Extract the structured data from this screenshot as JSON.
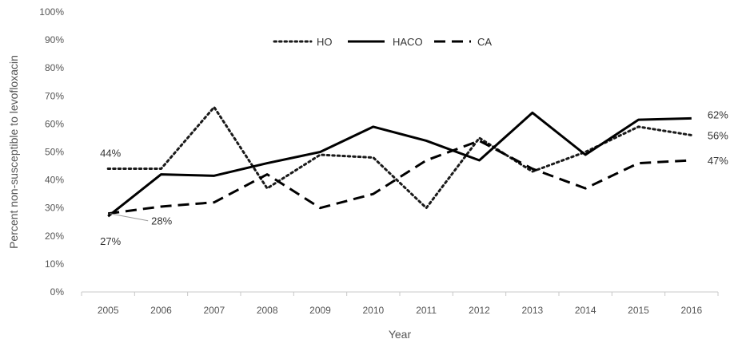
{
  "chart_data": {
    "type": "line",
    "title": "",
    "xlabel": "Year",
    "ylabel": "Percent non-susceptible to levofloxacin",
    "categories": [
      "2005",
      "2006",
      "2007",
      "2008",
      "2009",
      "2010",
      "2011",
      "2012",
      "2013",
      "2014",
      "2015",
      "2016"
    ],
    "ylim": [
      0,
      100
    ],
    "yticks": [
      "0%",
      "10%",
      "20%",
      "30%",
      "40%",
      "50%",
      "60%",
      "70%",
      "80%",
      "90%",
      "100%"
    ],
    "grid": false,
    "legend_position": "top-center",
    "series": [
      {
        "name": "HO",
        "style": "dotted",
        "color": "#1a1a1a",
        "values": [
          44,
          44,
          66,
          37,
          49,
          48,
          30,
          55,
          43,
          50,
          59,
          56
        ]
      },
      {
        "name": "HACO",
        "style": "solid",
        "color": "#000000",
        "values": [
          27,
          42,
          41.5,
          46,
          50,
          59,
          54,
          47,
          64,
          49,
          61.5,
          62
        ]
      },
      {
        "name": "CA",
        "style": "dashed",
        "color": "#000000",
        "values": [
          28,
          30.5,
          32,
          42,
          30,
          35,
          47,
          54,
          44,
          37,
          46,
          47
        ]
      }
    ],
    "annotations": [
      {
        "text": "44%",
        "series": "HO",
        "index": 0
      },
      {
        "text": "28%",
        "series": "CA",
        "index": 0
      },
      {
        "text": "27%",
        "series": "HACO",
        "index": 0
      },
      {
        "text": "62%",
        "series": "HACO",
        "index": 11
      },
      {
        "text": "56%",
        "series": "HO",
        "index": 11
      },
      {
        "text": "47%",
        "series": "CA",
        "index": 11
      }
    ]
  }
}
